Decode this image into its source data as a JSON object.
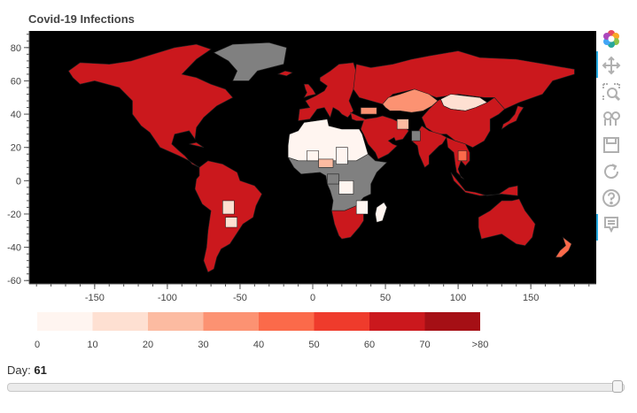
{
  "title": "Covid-19 Infections",
  "chart_data": {
    "type": "choropleth",
    "title": "Covid-19 Infections",
    "xlim": [
      -195,
      195
    ],
    "ylim": [
      -62,
      90
    ],
    "x_ticks": [
      -150,
      -100,
      -50,
      0,
      50,
      100,
      150
    ],
    "y_ticks": [
      80,
      60,
      40,
      20,
      0,
      -20,
      -40,
      -60
    ],
    "background_color": "#000000",
    "no_data_color": "#808080",
    "color_bins": [
      {
        "label": "0",
        "color": "#fff5f0"
      },
      {
        "label": "10",
        "color": "#fee0d2"
      },
      {
        "label": "20",
        "color": "#fcbba1"
      },
      {
        "label": "30",
        "color": "#fc9272"
      },
      {
        "label": "40",
        "color": "#fb6a4a"
      },
      {
        "label": "50",
        "color": "#ef3b2c"
      },
      {
        "label": "60",
        "color": "#cb181d"
      },
      {
        "label": "70",
        "color": "#a50f15"
      }
    ],
    "colorbar_labels": [
      "0",
      "10",
      "20",
      "30",
      "40",
      "50",
      "60",
      "70",
      ">80"
    ],
    "regions": [
      {
        "region": "North America",
        "bin": 6
      },
      {
        "region": "Greenland",
        "bin": "no data"
      },
      {
        "region": "South America",
        "bin": 6
      },
      {
        "region": "Europe",
        "bin": 6
      },
      {
        "region": "Russia",
        "bin": 6
      },
      {
        "region": "Kazakhstan",
        "bin": 3
      },
      {
        "region": "Mongolia",
        "bin": 1
      },
      {
        "region": "China",
        "bin": 6
      },
      {
        "region": "India",
        "bin": 6
      },
      {
        "region": "Middle East",
        "bin": 6
      },
      {
        "region": "North Africa",
        "bin": 0
      },
      {
        "region": "Central Africa",
        "bin": "no data"
      },
      {
        "region": "South Africa",
        "bin": 6
      },
      {
        "region": "Australia",
        "bin": 6
      },
      {
        "region": "New Zealand",
        "bin": 4
      },
      {
        "region": "Southeast Asia",
        "bin": 6
      }
    ]
  },
  "toolbar": {
    "tools": [
      {
        "name": "bokeh-logo-icon"
      },
      {
        "name": "pan-icon"
      },
      {
        "name": "box-zoom-icon"
      },
      {
        "name": "wheel-zoom-icon"
      },
      {
        "name": "save-icon"
      },
      {
        "name": "reset-icon"
      },
      {
        "name": "help-icon"
      },
      {
        "name": "hover-icon"
      }
    ]
  },
  "slider": {
    "label": "Day:",
    "value": "61",
    "min": 0,
    "max": 61
  }
}
